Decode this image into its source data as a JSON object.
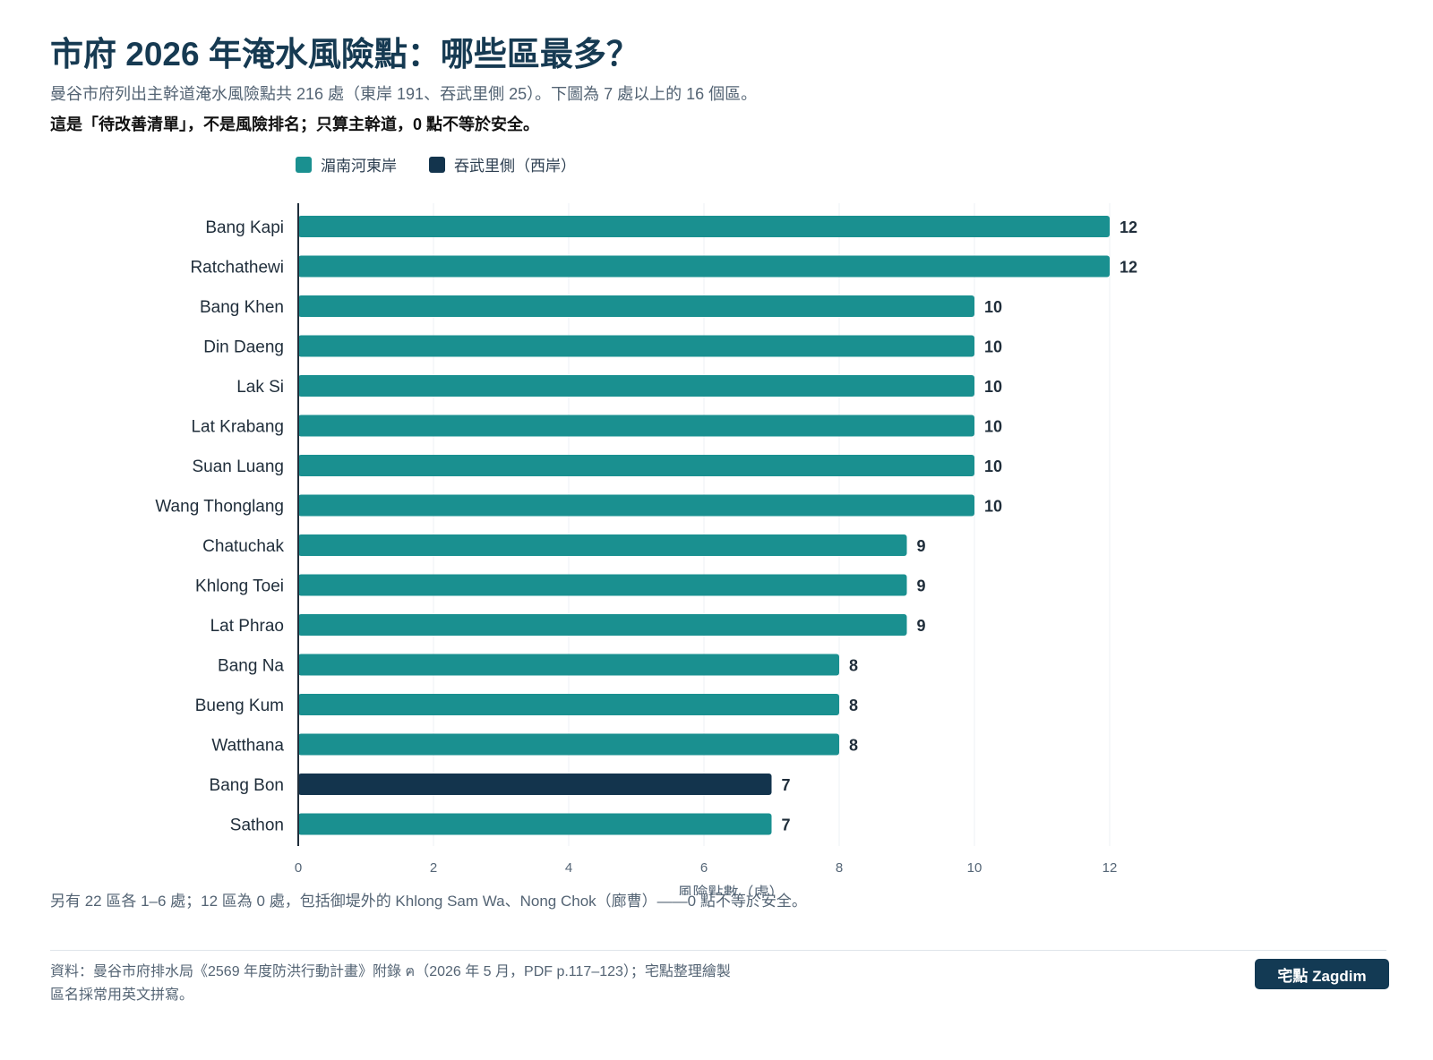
{
  "header": {
    "title": "市府 2026 年淹水風險點：哪些區最多？",
    "subtitle": "曼谷市府列出主幹道淹水風險點共 216 處（東岸 191、吞武里側 25）。下圖為 7 處以上的 16 個區。",
    "note": "這是「待改善清單」，不是風險排名；只算主幹道，0 點不等於安全。"
  },
  "legend": [
    {
      "label": "湄南河東岸",
      "color": "#1a9090"
    },
    {
      "label": "吞武里側（西岸）",
      "color": "#13344d"
    }
  ],
  "chart_data": {
    "type": "bar",
    "orientation": "horizontal",
    "categories": [
      "Bang Kapi",
      "Ratchathewi",
      "Bang Khen",
      "Din Daeng",
      "Lak Si",
      "Lat Krabang",
      "Suan Luang",
      "Wang Thonglang",
      "Chatuchak",
      "Khlong Toei",
      "Lat Phrao",
      "Bang Na",
      "Bueng Kum",
      "Watthana",
      "Bang Bon",
      "Sathon"
    ],
    "values": [
      12,
      12,
      10,
      10,
      10,
      10,
      10,
      10,
      9,
      9,
      9,
      8,
      8,
      8,
      7,
      7
    ],
    "groups": [
      "east",
      "east",
      "east",
      "east",
      "east",
      "east",
      "east",
      "east",
      "east",
      "east",
      "east",
      "east",
      "east",
      "east",
      "west",
      "east"
    ],
    "group_colors": {
      "east": "#1a9090",
      "west": "#13344d"
    },
    "xlabel": "風險點數（處）",
    "xlim": [
      0,
      12
    ],
    "xticks": [
      0,
      2,
      4,
      6,
      8,
      10,
      12
    ],
    "grid": "vertical",
    "legend_position": "top"
  },
  "footnote": "另有 22 區各 1–6 處；12 區為 0 處，包括御堤外的 Khlong Sam Wa、Nong Chok（廊曹）——0 點不等於安全。",
  "source": {
    "line1": "資料：曼谷市府排水局《2569 年度防洪行動計畫》附錄 ฅ（2026 年 5 月，PDF p.117–123）；宅點整理繪製",
    "line2": "區名採常用英文拼寫。"
  },
  "brand": "宅點 Zagdim"
}
